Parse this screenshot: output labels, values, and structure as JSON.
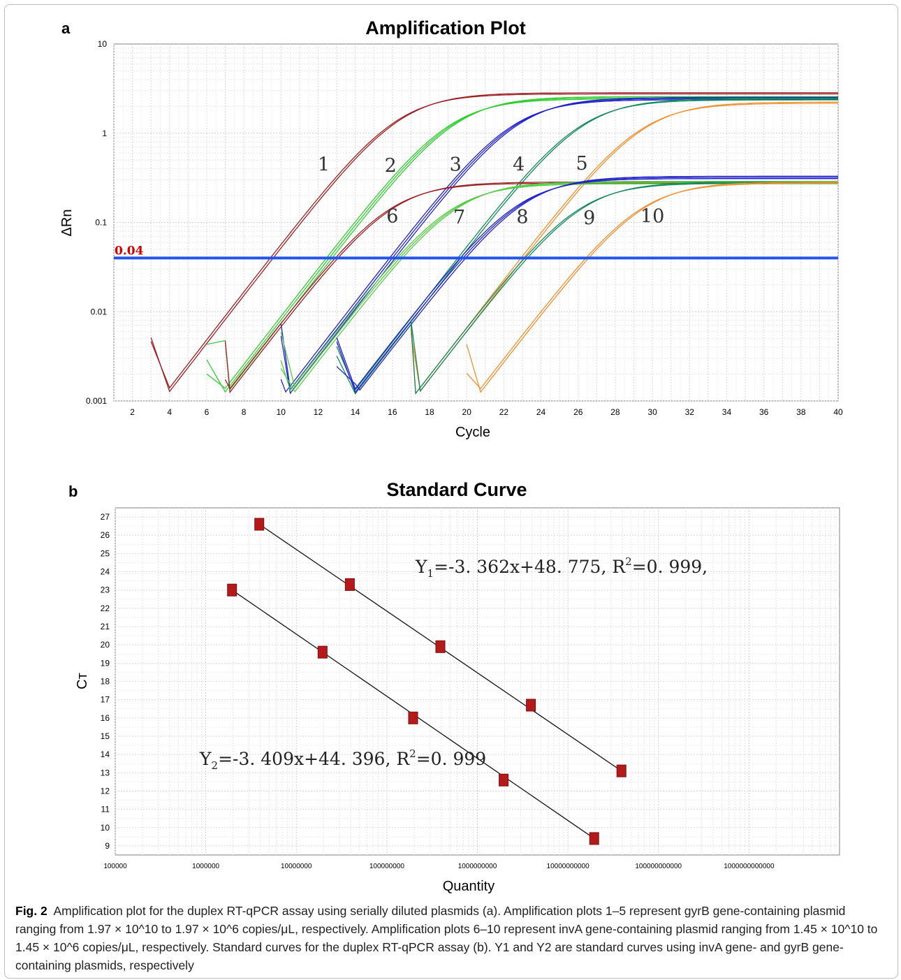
{
  "figure": {
    "panel_a_letter": "a",
    "panel_b_letter": "b",
    "caption": {
      "label": "Fig. 2",
      "text": "Amplification plot for the duplex RT-qPCR assay using serially diluted plasmids (a). Amplification plots 1–5 represent gyrB gene-containing plasmid ranging from 1.97 × 10^10 to 1.97 × 10^6 copies/μL, respectively. Amplification plots 6–10 represent invA gene-containing plasmid ranging from 1.45 × 10^10 to 1.45 × 10^6 copies/μL, respectively. Standard curves for the duplex RT-qPCR assay (b). Y1 and Y2 are standard curves using invA gene- and gyrB gene-containing plasmids, respectively"
    }
  },
  "chart_data": [
    {
      "type": "line",
      "title": "Amplification Plot",
      "xlabel": "Cycle",
      "ylabel": "ΔRn",
      "xlim": [
        1,
        40
      ],
      "ylim": [
        0.001,
        10
      ],
      "yscale": "log",
      "x_ticks": [
        2,
        4,
        6,
        8,
        10,
        12,
        14,
        16,
        18,
        20,
        22,
        24,
        26,
        28,
        30,
        32,
        34,
        36,
        38,
        40
      ],
      "y_ticks": [
        {
          "value": 0.001,
          "label": "0.001"
        },
        {
          "value": 0.01,
          "label": "0.01"
        },
        {
          "value": 0.1,
          "label": "0.1"
        },
        {
          "value": 1,
          "label": "1"
        },
        {
          "value": 10,
          "label": "10"
        }
      ],
      "grid": true,
      "threshold": {
        "value": 0.04,
        "label": "0.04",
        "color": "#2255ee"
      },
      "curve_labels": [
        {
          "label": "1",
          "x": 12.3,
          "y": 0.38
        },
        {
          "label": "2",
          "x": 15.9,
          "y": 0.37
        },
        {
          "label": "3",
          "x": 19.4,
          "y": 0.38
        },
        {
          "label": "4",
          "x": 22.8,
          "y": 0.38
        },
        {
          "label": "5",
          "x": 26.2,
          "y": 0.39
        },
        {
          "label": "6",
          "x": 16.0,
          "y": 0.1
        },
        {
          "label": "7",
          "x": 19.6,
          "y": 0.097
        },
        {
          "label": "8",
          "x": 23.0,
          "y": 0.098
        },
        {
          "label": "9",
          "x": 26.6,
          "y": 0.096
        },
        {
          "label": "10",
          "x": 30.0,
          "y": 0.1
        }
      ],
      "series": [
        {
          "name": "1",
          "color": "#9b1f23",
          "ct": 9.5,
          "plateau": 2.8,
          "replicates": 2
        },
        {
          "name": "2",
          "color": "#33cc33",
          "ct": 12.6,
          "plateau": 2.5,
          "replicates": 3
        },
        {
          "name": "3",
          "color": "#2222cc",
          "ct": 16.0,
          "plateau": 2.45,
          "replicates": 3
        },
        {
          "name": "4",
          "color": "#138a5a",
          "ct": 19.6,
          "plateau": 2.4,
          "replicates": 2
        },
        {
          "name": "5",
          "color": "#ee9030",
          "ct": 23.0,
          "plateau": 2.2,
          "replicates": 2
        },
        {
          "name": "6",
          "color": "#9b1f23",
          "ct": 13.0,
          "plateau": 0.28,
          "replicates": 2
        },
        {
          "name": "7",
          "color": "#55cc44",
          "ct": 16.4,
          "plateau": 0.28,
          "replicates": 3
        },
        {
          "name": "8",
          "color": "#2222cc",
          "ct": 19.8,
          "plateau": 0.32,
          "replicates": 3
        },
        {
          "name": "9",
          "color": "#138a5a",
          "ct": 23.2,
          "plateau": 0.28,
          "replicates": 2
        },
        {
          "name": "10",
          "color": "#ee9030",
          "ct": 26.5,
          "plateau": 0.28,
          "replicates": 2
        }
      ]
    },
    {
      "type": "scatter",
      "title": "Standard Curve",
      "xlabel": "Quantity",
      "ylabel": "Cт",
      "xscale": "log",
      "xlim": [
        100000,
        10000000000000
      ],
      "ylim": [
        8.5,
        27.5
      ],
      "x_ticks": [
        {
          "value": 100000,
          "label": "100000"
        },
        {
          "value": 1000000,
          "label": "1000000"
        },
        {
          "value": 10000000,
          "label": "10000000"
        },
        {
          "value": 100000000,
          "label": "100000000"
        },
        {
          "value": 1000000000,
          "label": "1000000000"
        },
        {
          "value": 10000000000,
          "label": "10000000000"
        },
        {
          "value": 100000000000,
          "label": "100000000000"
        },
        {
          "value": 1000000000000,
          "label": "1000000000000"
        }
      ],
      "y_ticks": [
        9,
        10,
        11,
        12,
        13,
        14,
        15,
        16,
        17,
        18,
        19,
        20,
        21,
        22,
        23,
        24,
        25,
        26,
        27
      ],
      "grid": true,
      "marker_color": "#b51a1a",
      "series": [
        {
          "name": "Y1",
          "equation": {
            "prefix": "Y",
            "sub": "1",
            "body": "=-3. 362x+48. 775,  R",
            "sup": "2",
            "tail": "=0. 999,"
          },
          "fit": {
            "slope": -3.362,
            "intercept": 48.775
          },
          "points": [
            {
              "x": 3900000,
              "y": 26.6
            },
            {
              "x": 39000000,
              "y": 23.3
            },
            {
              "x": 390000000,
              "y": 19.9
            },
            {
              "x": 3900000000,
              "y": 16.7
            },
            {
              "x": 39000000000,
              "y": 13.1
            }
          ]
        },
        {
          "name": "Y2",
          "equation": {
            "prefix": "Y",
            "sub": "2",
            "body": "=-3. 409x+44. 396,  R",
            "sup": "2",
            "tail": "=0. 999"
          },
          "fit": {
            "slope": -3.409,
            "intercept": 44.396
          },
          "points": [
            {
              "x": 1950000,
              "y": 23.0
            },
            {
              "x": 19500000,
              "y": 19.6
            },
            {
              "x": 195000000,
              "y": 16.0
            },
            {
              "x": 1950000000,
              "y": 12.6
            },
            {
              "x": 19500000000,
              "y": 9.4
            }
          ]
        }
      ]
    }
  ]
}
